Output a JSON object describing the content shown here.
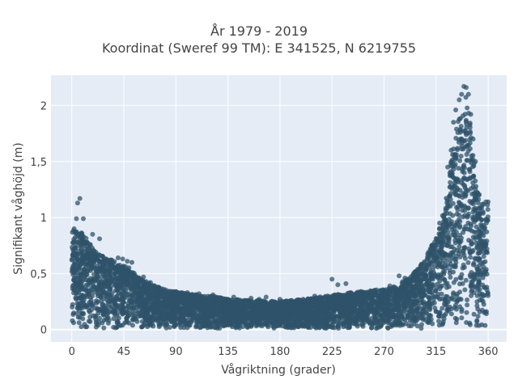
{
  "chart_data": {
    "type": "scatter",
    "title": "År 1979 - 2019",
    "subtitle": "Koordinat (Sweref 99 TM): E 341525, N 6219755",
    "xlabel": "Vågriktning (grader)",
    "ylabel": "Signifikant våghöjd (m)",
    "xlim": [
      -18,
      376
    ],
    "ylim": [
      -0.11,
      2.27
    ],
    "x_ticks": [
      0,
      45,
      90,
      135,
      180,
      225,
      270,
      315,
      360
    ],
    "x_tick_labels": [
      "0",
      "45",
      "90",
      "135",
      "180",
      "225",
      "270",
      "315",
      "360"
    ],
    "y_ticks": [
      0,
      0.5,
      1,
      1.5,
      2
    ],
    "y_tick_labels": [
      "0",
      "0,5",
      "1",
      "1,5",
      "2"
    ],
    "grid": true,
    "marker_color": "#2f5369",
    "background_color": "#e5ecf6",
    "envelope": {
      "description_direction_deg": [
        0,
        5,
        10,
        20,
        30,
        40,
        50,
        60,
        70,
        80,
        90,
        100,
        120,
        140,
        160,
        180,
        200,
        220,
        240,
        260,
        275,
        290,
        300,
        310,
        320,
        325,
        330,
        335,
        340,
        345,
        350,
        355,
        360
      ],
      "max_height_m": [
        0.88,
        0.92,
        0.85,
        0.7,
        0.65,
        0.6,
        0.55,
        0.45,
        0.4,
        0.36,
        0.34,
        0.32,
        0.3,
        0.27,
        0.26,
        0.25,
        0.27,
        0.3,
        0.33,
        0.35,
        0.37,
        0.45,
        0.55,
        0.72,
        0.98,
        1.3,
        1.65,
        1.95,
        2.12,
        1.85,
        1.25,
        1.15,
        1.12
      ]
    },
    "points": [
      [
        5,
        1.13
      ],
      [
        7,
        1.17
      ],
      [
        4,
        0.99
      ],
      [
        10,
        0.99
      ],
      [
        2,
        0.9
      ],
      [
        8,
        0.85
      ],
      [
        18,
        0.85
      ],
      [
        24,
        0.81
      ],
      [
        40,
        0.64
      ],
      [
        44,
        0.63
      ],
      [
        48,
        0.61
      ],
      [
        52,
        0.6
      ],
      [
        62,
        0.47
      ],
      [
        68,
        0.42
      ],
      [
        75,
        0.38
      ],
      [
        100,
        0.33
      ],
      [
        110,
        0.32
      ],
      [
        122,
        0.31
      ],
      [
        140,
        0.29
      ],
      [
        155,
        0.28
      ],
      [
        162,
        0.27
      ],
      [
        168,
        0.29
      ],
      [
        180,
        0.27
      ],
      [
        190,
        0.25
      ],
      [
        200,
        0.27
      ],
      [
        210,
        0.3
      ],
      [
        225,
        0.45
      ],
      [
        230,
        0.4
      ],
      [
        237,
        0.41
      ],
      [
        250,
        0.34
      ],
      [
        262,
        0.35
      ],
      [
        275,
        0.39
      ],
      [
        283,
        0.48
      ],
      [
        288,
        0.46
      ],
      [
        300,
        0.54
      ],
      [
        310,
        0.72
      ],
      [
        318,
        0.95
      ],
      [
        325,
        1.45
      ],
      [
        328,
        1.6
      ],
      [
        330,
        1.85
      ],
      [
        332,
        1.96
      ],
      [
        335,
        2.05
      ],
      [
        337,
        2.1
      ],
      [
        339,
        2.17
      ],
      [
        341,
        2.16
      ],
      [
        343,
        2.1
      ],
      [
        345,
        1.92
      ],
      [
        347,
        1.7
      ],
      [
        349,
        1.5
      ],
      [
        352,
        1.2
      ],
      [
        355,
        1.12
      ],
      [
        358,
        1.14
      ],
      [
        360,
        1.14
      ]
    ]
  }
}
